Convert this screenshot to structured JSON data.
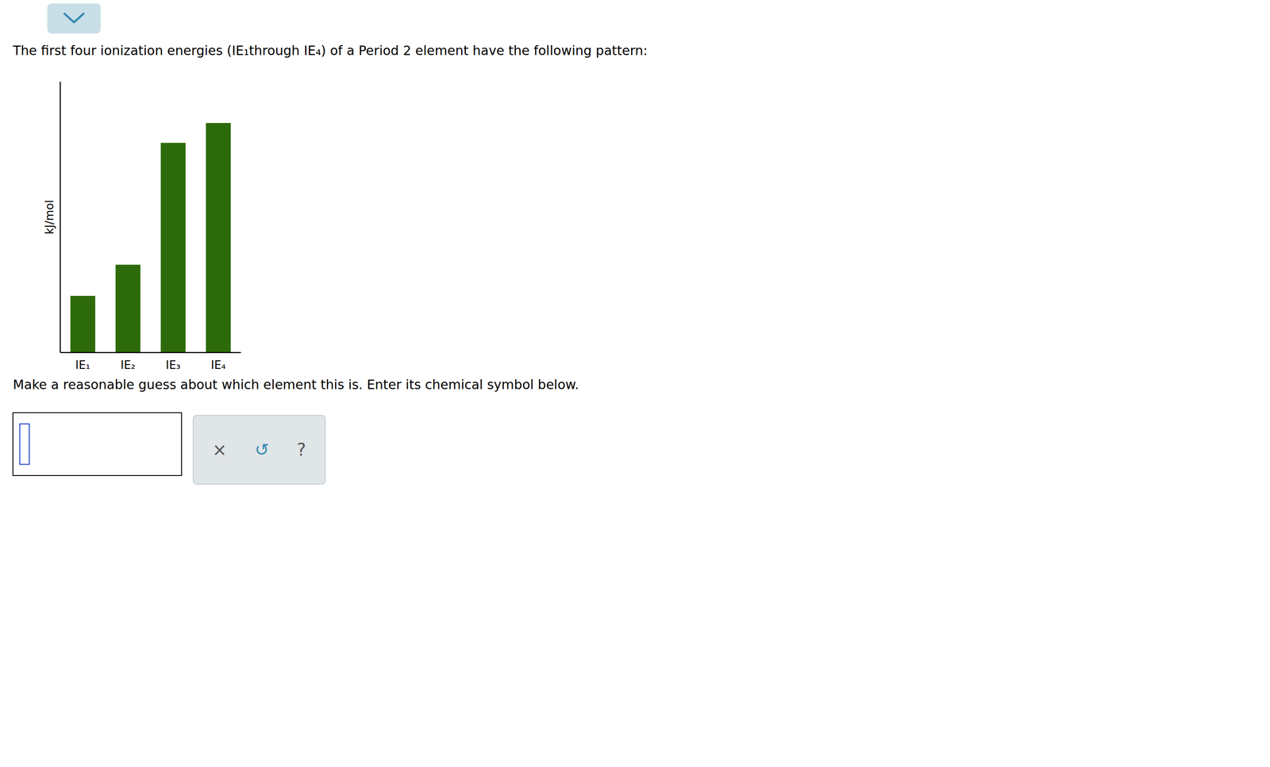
{
  "chart_data": {
    "type": "bar",
    "title": "The first four ionization energies (IE₁through IE₄) of a Period 2 element have the following pattern:",
    "subtitle": "Make a reasonable guess about which element this is. Enter its chemical symbol below.",
    "categories": [
      "IE₁",
      "IE₂",
      "IE₃",
      "IE₄"
    ],
    "values": [
      1.0,
      1.55,
      3.7,
      4.05
    ],
    "color": "#2d6a0a",
    "y_label": "kJ/mol",
    "ylim": [
      0,
      4.779
    ],
    "yticks": [],
    "tick_labels": "x",
    "grid": false,
    "annotations": [
      "×",
      "↺",
      "?"
    ]
  }
}
